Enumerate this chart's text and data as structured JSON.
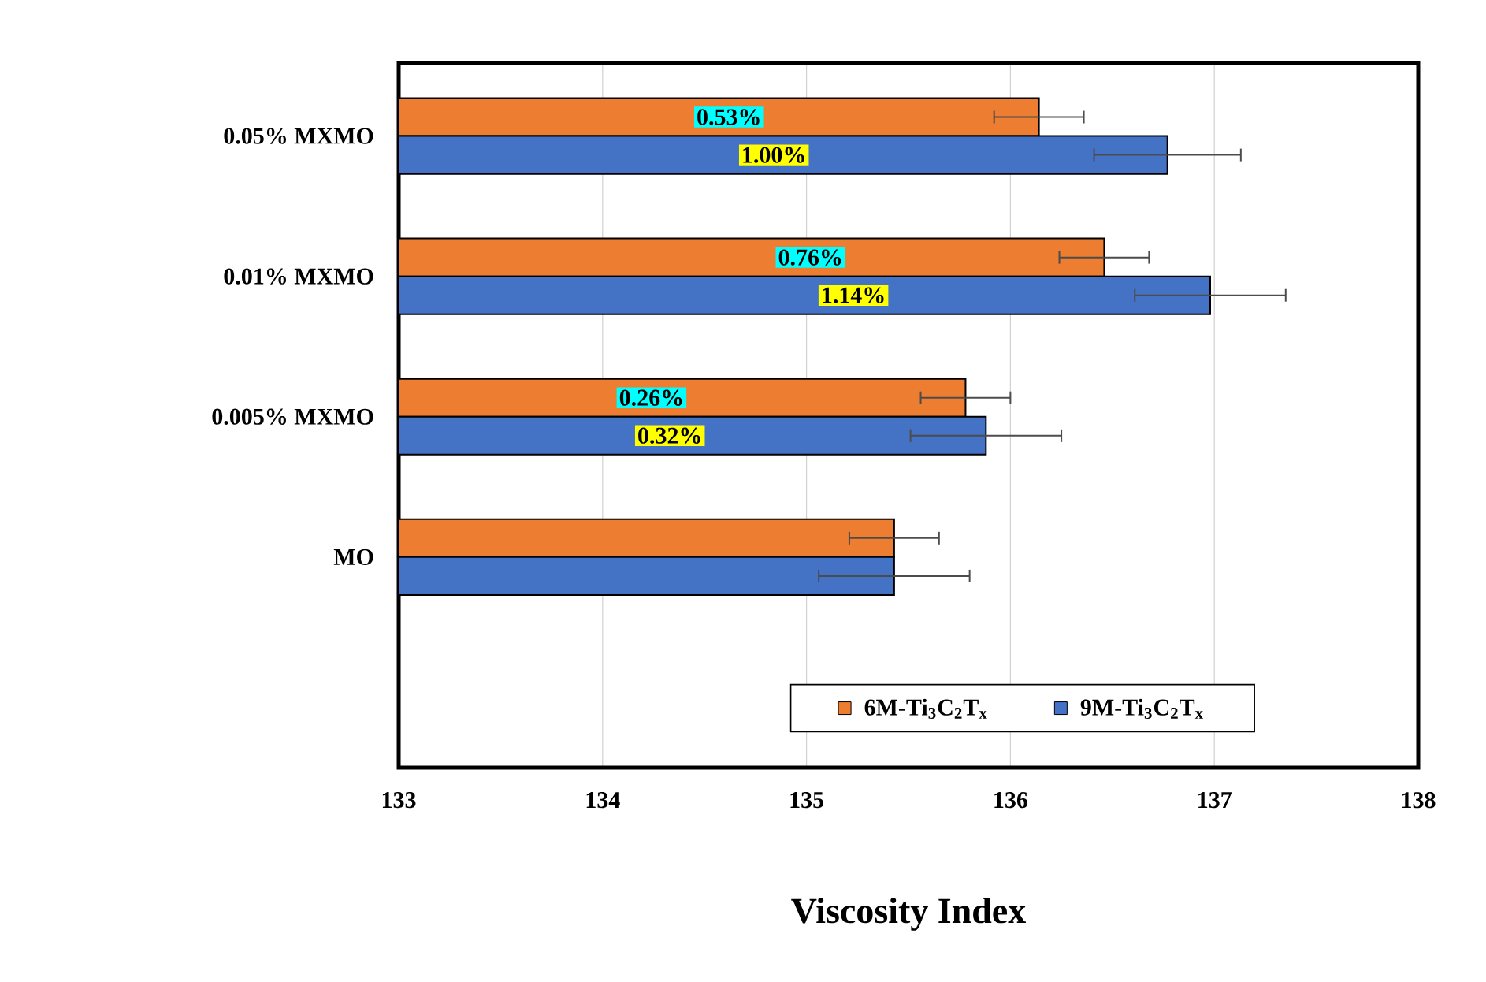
{
  "chart_data": {
    "type": "bar",
    "orientation": "horizontal",
    "xlabel": "Viscosity Index",
    "categories": [
      "0.05% MXMO",
      "0.01% MXMO",
      "0.005% MXMO",
      "MO"
    ],
    "series": [
      {
        "name": "6M-Ti$_{3}$C$_{2}$T$_{x}$",
        "color": "#ed7d31",
        "values": [
          136.14,
          136.46,
          135.78,
          135.43
        ],
        "errors": [
          0.22,
          0.22,
          0.22,
          0.22
        ]
      },
      {
        "name": "9M-Ti$_{3}$C$_{2}$T$_{x}$",
        "color": "#4472c4",
        "values": [
          136.77,
          136.98,
          135.88,
          135.43
        ],
        "errors": [
          0.36,
          0.37,
          0.37,
          0.37
        ]
      }
    ],
    "annotations": [
      {
        "text": "0.53%",
        "x": 134.62,
        "y": "0.05% MXMO"
      },
      {
        "text": "1.00%",
        "x": 134.84,
        "y": "0.05% MXMO"
      },
      {
        "text": "0.76%",
        "x": 135.02,
        "y": "0.01% MXMO"
      },
      {
        "text": "1.14%",
        "x": 135.23,
        "y": "0.01% MXMO"
      },
      {
        "text": "0.26%",
        "x": 134.24,
        "y": "0.005% MXMO"
      },
      {
        "text": "0.32%",
        "x": 134.33,
        "y": "0.005% MXMO"
      }
    ],
    "xlim": [
      133,
      138
    ],
    "xticks": [
      133,
      134,
      135,
      136,
      137,
      138
    ],
    "grid": "x",
    "legend": "bottom right"
  }
}
